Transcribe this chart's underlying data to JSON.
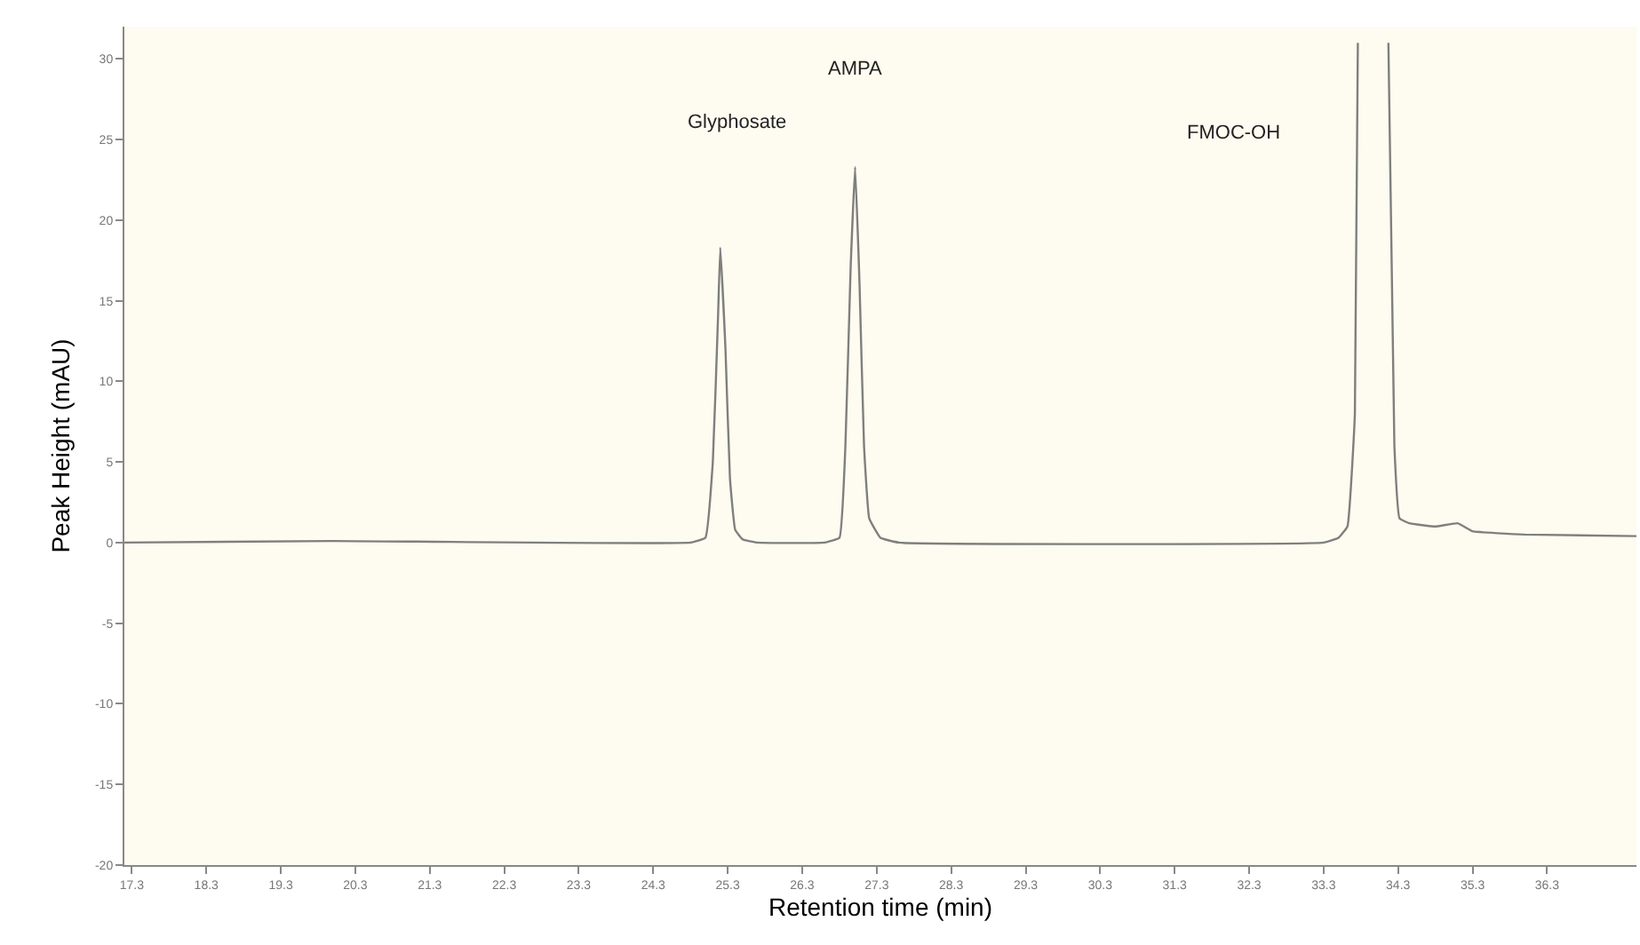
{
  "chart_data": {
    "type": "line",
    "xlabel": "Retention time (min)",
    "ylabel": "Peak Height (mAU)",
    "x": [
      17.2,
      20.0,
      24.8,
      25.0,
      25.1,
      25.17,
      25.2,
      25.27,
      25.33,
      25.4,
      25.5,
      25.7,
      26.6,
      26.8,
      26.88,
      26.95,
      27.01,
      27.07,
      27.13,
      27.2,
      27.35,
      27.6,
      33.3,
      33.5,
      33.62,
      33.72,
      33.76,
      33.95,
      34.17,
      34.25,
      34.32,
      34.45,
      34.8,
      35.1,
      35.3,
      36.0,
      37.5
    ],
    "series": [
      {
        "color": "#7f7f7f",
        "values": [
          0,
          0.1,
          0,
          0.3,
          5,
          14,
          18.3,
          12,
          4,
          0.8,
          0.2,
          0,
          0,
          0.3,
          6,
          17,
          23.3,
          16,
          6,
          1.5,
          0.3,
          0,
          0,
          0.3,
          1,
          8,
          31,
          null,
          31,
          6,
          1.5,
          1.2,
          1.0,
          1.2,
          0.7,
          0.5,
          0.4
        ]
      }
    ],
    "annotations": [
      "Glyphosate",
      "AMPA",
      "FMOC-OH"
    ],
    "xlim": [
      17.2,
      37.5
    ],
    "xticks": [
      17.3,
      18.3,
      19.3,
      20.3,
      21.3,
      22.3,
      23.3,
      24.3,
      25.3,
      26.3,
      27.3,
      28.3,
      29.3,
      30.3,
      31.3,
      32.3,
      33.3,
      34.3,
      35.3,
      36.3
    ],
    "ylim": [
      -20,
      32
    ],
    "yticks": [
      -20,
      -15,
      -10,
      -5,
      0,
      5,
      10,
      15,
      20,
      25,
      30
    ],
    "grid": false,
    "legend": false,
    "marker": "none",
    "line_style": "solid"
  }
}
